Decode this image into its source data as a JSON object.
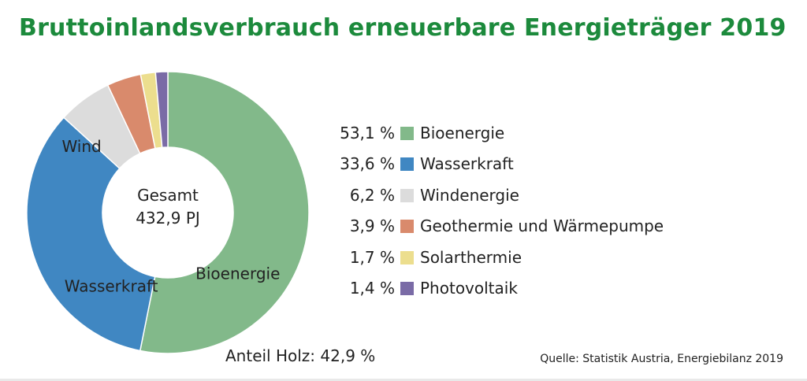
{
  "title": "Bruttoinlandsverbrauch erneuerbare Energieträger 2019",
  "chart_data": {
    "type": "pie",
    "style": "donut",
    "center_label_line1": "Gesamt",
    "center_label_line2": "432,9 PJ",
    "slices": [
      {
        "name": "Bioenergie",
        "value": 53.1,
        "label": "53,1 %",
        "color": "#82b98a",
        "slice_label": "Bioenergie"
      },
      {
        "name": "Wasserkraft",
        "value": 33.6,
        "label": "33,6 %",
        "color": "#4087c2",
        "slice_label": "Wasserkraft"
      },
      {
        "name": "Windenergie",
        "value": 6.2,
        "label": "6,2 %",
        "color": "#dcdcdc",
        "slice_label": "Wind"
      },
      {
        "name": "Geothermie und Wärmepumpe",
        "value": 3.9,
        "label": "3,9 %",
        "color": "#d98a6c",
        "slice_label": ""
      },
      {
        "name": "Solarthermie",
        "value": 1.7,
        "label": "1,7 %",
        "color": "#ecde8e",
        "slice_label": ""
      },
      {
        "name": "Photovoltaik",
        "value": 1.4,
        "label": "1,4 %",
        "color": "#7a6ba6",
        "slice_label": ""
      }
    ],
    "legend_position": "right"
  },
  "footer": "Anteil Holz: 42,9 %",
  "source": "Quelle: Statistik Austria, Energiebilanz 2019"
}
